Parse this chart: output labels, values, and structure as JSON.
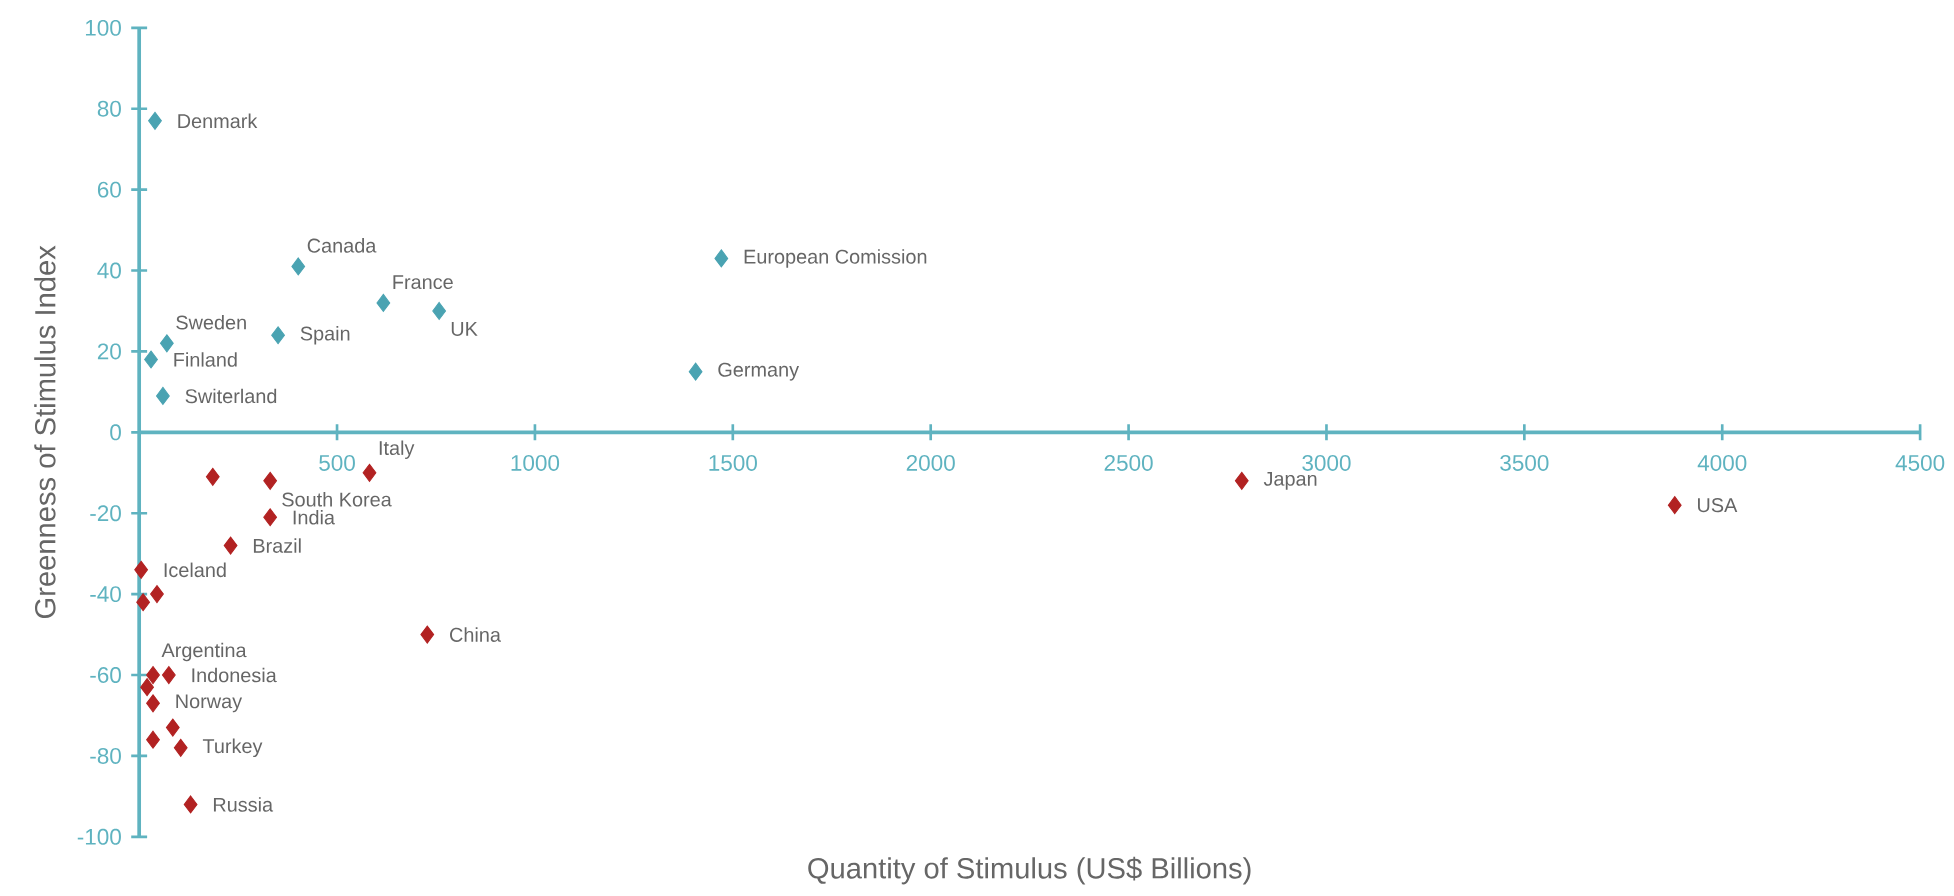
{
  "chart_data": {
    "type": "scatter",
    "xlabel": "Quantity of Stimulus (US$ Billions)",
    "ylabel": "Greenness of Stimulus Index",
    "xlim": [
      0,
      4500
    ],
    "ylim": [
      -100,
      100
    ],
    "xticks": [
      500,
      1000,
      1500,
      2000,
      2500,
      3000,
      3500,
      4000,
      4500
    ],
    "yticks": [
      -100,
      -80,
      -60,
      -40,
      -20,
      0,
      20,
      40,
      60,
      80,
      100
    ],
    "marker": "diamond",
    "series": [
      {
        "color": "#4aa3b2",
        "x": [
          40,
          402,
          617,
          758,
          351,
          70,
          30,
          60,
          1471,
          1406
        ],
        "values": [
          77,
          41,
          32,
          30,
          24,
          22,
          18,
          9,
          43,
          15
        ]
      },
      {
        "color": "#b22222",
        "x": [
          186,
          331,
          582,
          331,
          231,
          5,
          45,
          10,
          35,
          75,
          20,
          35,
          85,
          35,
          105,
          130,
          728,
          2786,
          3880
        ],
        "values": [
          -11,
          -12,
          -10,
          -21,
          -28,
          -34,
          -40,
          -42,
          -60,
          -60,
          -63,
          -67,
          -73,
          -76,
          -78,
          -92,
          -50,
          -12,
          -18
        ]
      }
    ],
    "annotations": [
      {
        "text": "Denmark",
        "x": 40,
        "y": 77
      },
      {
        "text": "Canada",
        "x": 402,
        "y": 41
      },
      {
        "text": "France",
        "x": 617,
        "y": 32
      },
      {
        "text": "UK",
        "x": 758,
        "y": 30
      },
      {
        "text": "Spain",
        "x": 351,
        "y": 24
      },
      {
        "text": "Sweden",
        "x": 70,
        "y": 22
      },
      {
        "text": "Finland",
        "x": 30,
        "y": 18
      },
      {
        "text": "Switerland",
        "x": 60,
        "y": 9
      },
      {
        "text": "European Comission",
        "x": 1471,
        "y": 43
      },
      {
        "text": "Germany",
        "x": 1406,
        "y": 15
      },
      {
        "text": "Italy",
        "x": 582,
        "y": -10
      },
      {
        "text": "South Korea",
        "x": 331,
        "y": -12
      },
      {
        "text": "India",
        "x": 331,
        "y": -21
      },
      {
        "text": "Brazil",
        "x": 231,
        "y": -28
      },
      {
        "text": "Iceland",
        "x": 5,
        "y": -34
      },
      {
        "text": "Argentina",
        "x": 35,
        "y": -60
      },
      {
        "text": "Indonesia",
        "x": 75,
        "y": -60
      },
      {
        "text": "Norway",
        "x": 35,
        "y": -67
      },
      {
        "text": "Turkey",
        "x": 105,
        "y": -78
      },
      {
        "text": "Russia",
        "x": 130,
        "y": -92
      },
      {
        "text": "China",
        "x": 728,
        "y": -50
      },
      {
        "text": "Japan",
        "x": 2786,
        "y": -12
      },
      {
        "text": "USA",
        "x": 3880,
        "y": -18
      }
    ]
  }
}
